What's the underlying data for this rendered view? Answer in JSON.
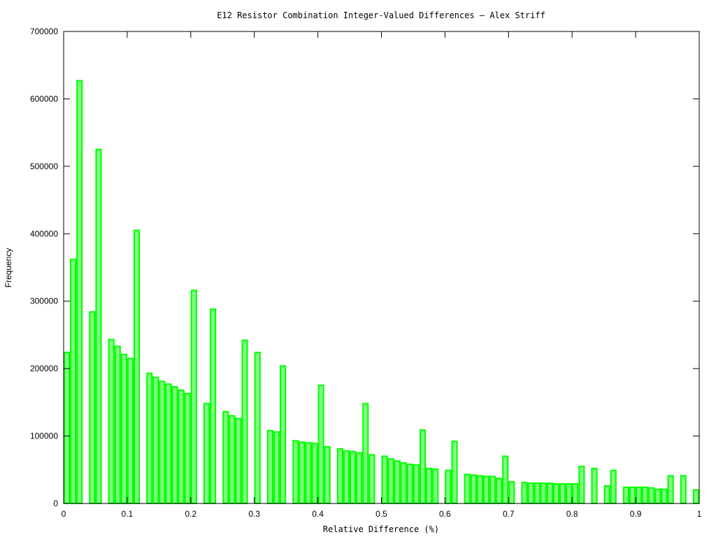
{
  "chart_data": {
    "type": "bar",
    "title": "E12 Resistor Combination Integer-Valued Differences — Alex Striff",
    "xlabel": "Relative Difference (%)",
    "ylabel": "Frequency",
    "xlim": [
      0,
      1
    ],
    "ylim": [
      0,
      700000
    ],
    "bin_width": 0.01,
    "grid": false,
    "legend": "none",
    "colors": {
      "bar_fill": "#80ff80",
      "bar_stroke": "#00ff00",
      "axis": "#000000"
    },
    "xticks": [
      "0",
      "0.1",
      "0.2",
      "0.3",
      "0.4",
      "0.5",
      "0.6",
      "0.7",
      "0.8",
      "0.9",
      "1"
    ],
    "xtick_values": [
      0,
      0.1,
      0.2,
      0.3,
      0.4,
      0.5,
      0.6,
      0.7,
      0.8,
      0.9,
      1
    ],
    "yticks": [
      "0",
      "100000",
      "200000",
      "300000",
      "400000",
      "500000",
      "600000",
      "700000"
    ],
    "ytick_values": [
      0,
      100000,
      200000,
      300000,
      400000,
      500000,
      600000,
      700000
    ],
    "x": [
      0.0,
      0.01,
      0.02,
      0.04,
      0.05,
      0.07,
      0.08,
      0.09,
      0.1,
      0.11,
      0.13,
      0.14,
      0.15,
      0.16,
      0.17,
      0.18,
      0.19,
      0.2,
      0.22,
      0.23,
      0.25,
      0.26,
      0.27,
      0.28,
      0.3,
      0.32,
      0.33,
      0.34,
      0.36,
      0.37,
      0.38,
      0.39,
      0.4,
      0.41,
      0.43,
      0.44,
      0.45,
      0.46,
      0.47,
      0.48,
      0.5,
      0.51,
      0.52,
      0.53,
      0.54,
      0.55,
      0.56,
      0.57,
      0.58,
      0.6,
      0.61,
      0.63,
      0.64,
      0.65,
      0.66,
      0.67,
      0.68,
      0.69,
      0.7,
      0.72,
      0.73,
      0.74,
      0.75,
      0.76,
      0.77,
      0.78,
      0.79,
      0.8,
      0.81,
      0.83,
      0.85,
      0.86,
      0.88,
      0.89,
      0.9,
      0.91,
      0.92,
      0.93,
      0.94,
      0.95,
      0.97,
      0.99
    ],
    "values": [
      224000,
      362000,
      627000,
      284000,
      525000,
      243000,
      233000,
      221000,
      215000,
      405000,
      193000,
      187000,
      181000,
      177000,
      173000,
      168000,
      163000,
      316000,
      148000,
      288000,
      136000,
      130000,
      126000,
      242000,
      224000,
      108000,
      106000,
      204000,
      93000,
      91000,
      90000,
      89000,
      175000,
      84000,
      81000,
      78000,
      77000,
      75000,
      148000,
      72000,
      70000,
      66000,
      63000,
      60000,
      58000,
      57000,
      109000,
      52000,
      51000,
      49000,
      92000,
      43000,
      42000,
      41000,
      40000,
      40000,
      37000,
      70000,
      32000,
      31000,
      30000,
      30000,
      30000,
      30000,
      29000,
      29000,
      29000,
      29000,
      55000,
      52000,
      26000,
      49000,
      24000,
      24000,
      24000,
      24000,
      23000,
      21000,
      21000,
      41000,
      41000,
      20000
    ]
  }
}
